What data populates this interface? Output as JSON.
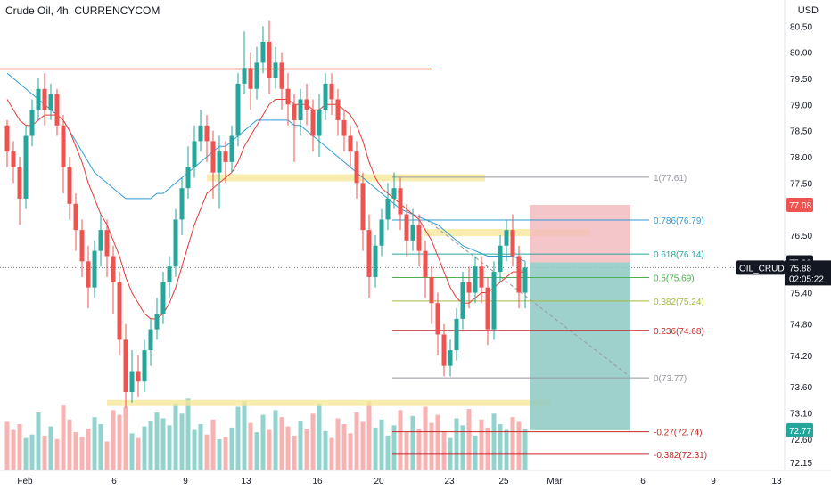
{
  "header": {
    "title": "Crude Oil, 4h, CURRENCYCOM",
    "currency": "USD"
  },
  "colors": {
    "up": "#26a69a",
    "down": "#ef5350",
    "vol_up": "#80cbc4",
    "vol_down": "#f4a6a4",
    "ma_fast": "#e53935",
    "ma_slow": "#2e9bd6",
    "resistance": "#f44336",
    "zone": "#f6e89a",
    "target_zone": "#8ec9c3",
    "stop_zone": "#f3b8bb"
  },
  "chart_data": {
    "type": "candlestick",
    "ylim": [
      72.0,
      81.0
    ],
    "y_ticks": [
      "80.50",
      "80.00",
      "79.50",
      "79.00",
      "78.50",
      "78.00",
      "77.50",
      "76.50",
      "75.40",
      "74.80",
      "74.20",
      "73.60",
      "73.10",
      "72.60",
      "72.15"
    ],
    "x_ticks": [
      "Feb",
      "6",
      "9",
      "13",
      "16",
      "20",
      "23",
      "25",
      "Mar",
      "6",
      "9",
      "13"
    ],
    "price_labels": [
      {
        "value": "77.08",
        "style": "red"
      },
      {
        "value": "75.98",
        "style": "dark"
      },
      {
        "value": "72.77",
        "style": "teal"
      }
    ],
    "current_price": {
      "symbol": "OIL_CRUDE",
      "price": "75.88",
      "countdown": "02:05:22",
      "value": 75.88
    },
    "fib_levels": [
      {
        "label": "1(77.61)",
        "value": 77.61,
        "color": "#9598a1"
      },
      {
        "label": "0.786(76.79)",
        "value": 76.79,
        "color": "#2e9bd6"
      },
      {
        "label": "0.618(76.14)",
        "value": 76.14,
        "color": "#26a69a"
      },
      {
        "label": "0.5(75.69)",
        "value": 75.69,
        "color": "#4caf50"
      },
      {
        "label": "0.382(75.24)",
        "value": 75.24,
        "color": "#a5b93a"
      },
      {
        "label": "0.236(74.68)",
        "value": 74.68,
        "color": "#c62828"
      },
      {
        "label": "0(73.77)",
        "value": 73.77,
        "color": "#9598a1"
      },
      {
        "label": "-0.27(72.74)",
        "value": 72.74,
        "color": "#c62828"
      },
      {
        "label": "-0.382(72.31)",
        "value": 72.31,
        "color": "#c62828"
      }
    ],
    "resistance": 79.68,
    "zones": [
      77.6,
      76.55,
      73.3
    ],
    "position": {
      "entry": 75.98,
      "stop": 77.08,
      "target": 72.77
    },
    "candles": [
      [
        78.6,
        78.1,
        78.7,
        77.8
      ],
      [
        78.1,
        77.8,
        78.3,
        77.5
      ],
      [
        77.8,
        77.2,
        78.0,
        76.7
      ],
      [
        77.2,
        78.4,
        78.6,
        77.0
      ],
      [
        78.4,
        78.9,
        79.1,
        78.2
      ],
      [
        78.9,
        79.3,
        79.5,
        78.7
      ],
      [
        79.3,
        78.9,
        79.6,
        78.6
      ],
      [
        78.9,
        79.2,
        79.4,
        78.7
      ],
      [
        79.2,
        78.6,
        79.3,
        78.4
      ],
      [
        78.6,
        77.8,
        78.8,
        77.3
      ],
      [
        77.8,
        77.1,
        78.0,
        76.8
      ],
      [
        77.1,
        76.6,
        77.3,
        76.2
      ],
      [
        76.6,
        76.0,
        76.8,
        75.7
      ],
      [
        76.0,
        75.5,
        76.3,
        75.1
      ],
      [
        75.5,
        76.2,
        76.4,
        75.3
      ],
      [
        76.2,
        76.6,
        76.9,
        75.9
      ],
      [
        76.6,
        76.1,
        76.8,
        75.7
      ],
      [
        76.1,
        75.6,
        76.3,
        75.0
      ],
      [
        75.6,
        74.5,
        75.8,
        74.2
      ],
      [
        74.5,
        73.5,
        74.8,
        73.2
      ],
      [
        73.5,
        73.9,
        74.3,
        73.3
      ],
      [
        73.9,
        73.7,
        74.2,
        73.4
      ],
      [
        73.7,
        74.3,
        74.5,
        73.5
      ],
      [
        74.3,
        74.7,
        74.9,
        74.0
      ],
      [
        74.7,
        75.0,
        75.3,
        74.5
      ],
      [
        75.0,
        75.6,
        75.8,
        74.8
      ],
      [
        75.6,
        75.9,
        76.1,
        75.3
      ],
      [
        75.9,
        76.8,
        77.0,
        75.7
      ],
      [
        76.8,
        77.4,
        77.6,
        76.5
      ],
      [
        77.4,
        77.8,
        78.2,
        77.2
      ],
      [
        77.8,
        78.3,
        78.6,
        77.6
      ],
      [
        78.3,
        78.6,
        78.9,
        78.1
      ],
      [
        78.6,
        78.3,
        78.8,
        77.9
      ],
      [
        78.3,
        77.7,
        78.5,
        77.2
      ],
      [
        77.7,
        78.1,
        78.4,
        77.0
      ],
      [
        78.1,
        77.9,
        78.3,
        77.5
      ],
      [
        77.9,
        78.4,
        78.6,
        77.7
      ],
      [
        78.4,
        79.4,
        79.6,
        78.2
      ],
      [
        79.4,
        79.7,
        80.4,
        79.2
      ],
      [
        79.7,
        79.3,
        80.0,
        78.9
      ],
      [
        79.3,
        79.8,
        80.1,
        79.1
      ],
      [
        79.8,
        80.2,
        80.5,
        79.6
      ],
      [
        80.2,
        79.5,
        80.6,
        79.2
      ],
      [
        79.5,
        79.8,
        80.1,
        79.3
      ],
      [
        79.8,
        79.3,
        80.0,
        78.9
      ],
      [
        79.3,
        79.0,
        79.6,
        78.6
      ],
      [
        79.0,
        78.7,
        79.2,
        77.9
      ],
      [
        78.7,
        79.1,
        79.3,
        78.4
      ],
      [
        79.1,
        78.9,
        79.4,
        78.6
      ],
      [
        78.9,
        78.4,
        79.1,
        78.1
      ],
      [
        78.4,
        78.9,
        79.2,
        78.0
      ],
      [
        78.9,
        79.4,
        79.6,
        78.7
      ],
      [
        79.4,
        79.1,
        79.6,
        78.8
      ],
      [
        79.1,
        78.7,
        79.3,
        78.4
      ],
      [
        78.7,
        78.4,
        78.9,
        78.1
      ],
      [
        78.4,
        78.1,
        78.6,
        77.8
      ],
      [
        78.1,
        77.5,
        78.3,
        77.2
      ],
      [
        77.5,
        76.6,
        77.7,
        76.2
      ],
      [
        76.6,
        75.7,
        76.9,
        75.3
      ],
      [
        75.7,
        76.3,
        76.5,
        75.5
      ],
      [
        76.3,
        76.8,
        77.0,
        76.1
      ],
      [
        76.8,
        77.2,
        77.5,
        76.6
      ],
      [
        77.2,
        77.4,
        77.7,
        77.0
      ],
      [
        77.4,
        76.9,
        77.6,
        76.6
      ],
      [
        76.9,
        76.4,
        77.1,
        76.1
      ],
      [
        76.4,
        76.7,
        77.0,
        76.2
      ],
      [
        76.7,
        76.2,
        76.9,
        75.9
      ],
      [
        76.2,
        75.7,
        76.4,
        75.3
      ],
      [
        75.7,
        75.2,
        75.9,
        74.8
      ],
      [
        75.2,
        74.6,
        75.4,
        74.2
      ],
      [
        74.6,
        74.0,
        74.8,
        73.8
      ],
      [
        74.0,
        74.3,
        74.5,
        73.8
      ],
      [
        74.3,
        74.9,
        75.1,
        74.1
      ],
      [
        74.9,
        75.6,
        75.8,
        74.7
      ],
      [
        75.6,
        75.4,
        75.9,
        75.1
      ],
      [
        75.4,
        75.9,
        76.1,
        75.2
      ],
      [
        75.9,
        75.5,
        76.1,
        75.2
      ],
      [
        75.5,
        74.7,
        75.7,
        74.4
      ],
      [
        74.7,
        75.8,
        76.0,
        74.5
      ],
      [
        75.8,
        76.3,
        76.5,
        75.6
      ],
      [
        76.3,
        76.6,
        76.8,
        76.0
      ],
      [
        76.6,
        76.1,
        76.9,
        75.9
      ],
      [
        76.1,
        75.4,
        76.3,
        75.1
      ],
      [
        75.4,
        75.88,
        76.0,
        75.1
      ]
    ],
    "volumes": [
      0.42,
      0.35,
      0.4,
      0.28,
      0.31,
      0.5,
      0.3,
      0.38,
      0.27,
      0.56,
      0.44,
      0.33,
      0.29,
      0.36,
      0.46,
      0.4,
      0.25,
      0.52,
      0.48,
      0.55,
      0.32,
      0.28,
      0.38,
      0.43,
      0.5,
      0.45,
      0.39,
      0.58,
      0.49,
      0.62,
      0.35,
      0.4,
      0.31,
      0.44,
      0.27,
      0.29,
      0.37,
      0.55,
      0.6,
      0.41,
      0.33,
      0.48,
      0.35,
      0.52,
      0.46,
      0.38,
      0.3,
      0.43,
      0.36,
      0.49,
      0.58,
      0.34,
      0.28,
      0.45,
      0.4,
      0.32,
      0.5,
      0.42,
      0.6,
      0.37,
      0.44,
      0.3,
      0.39,
      0.52,
      0.33,
      0.47,
      0.36,
      0.55,
      0.41,
      0.48,
      0.34,
      0.28,
      0.45,
      0.39,
      0.53,
      0.3,
      0.44,
      0.37,
      0.49,
      0.4,
      0.35,
      0.46,
      0.42,
      0.36
    ],
    "ma_fast": [
      79.1,
      78.9,
      78.7,
      78.6,
      78.6,
      78.7,
      78.8,
      78.8,
      78.8,
      78.7,
      78.5,
      78.2,
      77.9,
      77.5,
      77.2,
      76.9,
      76.7,
      76.4,
      76.1,
      75.7,
      75.4,
      75.2,
      75.0,
      74.9,
      74.9,
      75.0,
      75.2,
      75.5,
      75.9,
      76.3,
      76.7,
      77.0,
      77.3,
      77.4,
      77.5,
      77.6,
      77.7,
      77.9,
      78.2,
      78.4,
      78.6,
      78.8,
      79.0,
      79.1,
      79.1,
      79.1,
      79.0,
      79.0,
      79.0,
      78.9,
      78.9,
      79.0,
      79.0,
      79.0,
      78.9,
      78.8,
      78.6,
      78.3,
      77.9,
      77.6,
      77.4,
      77.3,
      77.2,
      77.1,
      77.0,
      76.9,
      76.8,
      76.6,
      76.4,
      76.1,
      75.8,
      75.5,
      75.3,
      75.2,
      75.2,
      75.3,
      75.4,
      75.4,
      75.5,
      75.6,
      75.7,
      75.8,
      75.8,
      75.8
    ],
    "ma_slow": [
      79.6,
      79.5,
      79.4,
      79.3,
      79.2,
      79.1,
      79.0,
      78.9,
      78.8,
      78.7,
      78.5,
      78.3,
      78.1,
      77.9,
      77.7,
      77.6,
      77.5,
      77.4,
      77.3,
      77.2,
      77.2,
      77.2,
      77.2,
      77.2,
      77.3,
      77.3,
      77.4,
      77.5,
      77.6,
      77.7,
      77.8,
      77.9,
      78.0,
      78.1,
      78.2,
      78.2,
      78.3,
      78.4,
      78.5,
      78.6,
      78.7,
      78.7,
      78.7,
      78.7,
      78.7,
      78.7,
      78.6,
      78.6,
      78.5,
      78.4,
      78.3,
      78.2,
      78.1,
      78.0,
      77.9,
      77.8,
      77.7,
      77.6,
      77.5,
      77.4,
      77.3,
      77.2,
      77.1,
      77.0,
      76.95,
      76.9,
      76.85,
      76.8,
      76.75,
      76.7,
      76.6,
      76.5,
      76.4,
      76.3,
      76.25,
      76.2,
      76.15,
      76.1,
      76.1,
      76.1,
      76.1,
      76.1,
      76.05,
      76.0
    ]
  }
}
